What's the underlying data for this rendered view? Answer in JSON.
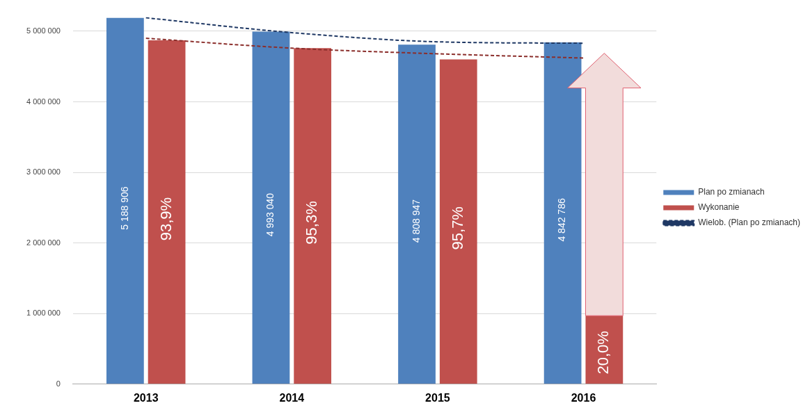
{
  "chart_data": {
    "type": "bar",
    "categories": [
      "2013",
      "2014",
      "2015",
      "2016"
    ],
    "series": [
      {
        "name": "Plan po zmianach",
        "color": "#4f81bd",
        "values": [
          5188906,
          4993040,
          4808947,
          4842786
        ],
        "value_labels": [
          "5 188 906",
          "4 993 040",
          "4 808 947",
          "4 842 786"
        ]
      },
      {
        "name": "Wykonanie",
        "color": "#c0504d",
        "values": [
          4870000,
          4760000,
          4600000,
          970000
        ]
      },
      {
        "name": "Wielob. (Plan po zmianach)",
        "type": "line",
        "color": "#1f3864",
        "values": [
          5190000,
          4980000,
          4850000,
          4830000
        ],
        "line_style": "dashed"
      },
      {
        "type": "line",
        "color": "#8b2e2b",
        "values": [
          4900000,
          4760000,
          4680000,
          4620000
        ],
        "line_style": "dashed"
      }
    ],
    "annotations": [
      {
        "text": "93,9%",
        "x": "2013"
      },
      {
        "text": "95,3%",
        "x": "2014"
      },
      {
        "text": "95,7%",
        "x": "2015"
      },
      {
        "text": "20,0%",
        "x": "2016"
      }
    ],
    "ylim": [
      0,
      5200000
    ],
    "yticks": [
      {
        "value": 0,
        "label": "0"
      },
      {
        "value": 1000000,
        "label": "1 000 000"
      },
      {
        "value": 2000000,
        "label": "2 000 000"
      },
      {
        "value": 3000000,
        "label": "3 000 000"
      },
      {
        "value": 4000000,
        "label": "4 000 000"
      },
      {
        "value": 5000000,
        "label": "5 000 000"
      }
    ],
    "grid": "y",
    "legend": "right",
    "marker": "none"
  }
}
